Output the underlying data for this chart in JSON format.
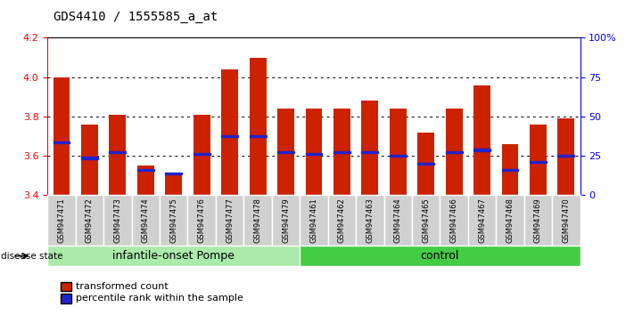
{
  "title": "GDS4410 / 1555585_a_at",
  "samples": [
    "GSM947471",
    "GSM947472",
    "GSM947473",
    "GSM947474",
    "GSM947475",
    "GSM947476",
    "GSM947477",
    "GSM947478",
    "GSM947479",
    "GSM947461",
    "GSM947462",
    "GSM947463",
    "GSM947464",
    "GSM947465",
    "GSM947466",
    "GSM947467",
    "GSM947468",
    "GSM947469",
    "GSM947470"
  ],
  "bar_values": [
    4.0,
    3.76,
    3.81,
    3.55,
    3.5,
    3.81,
    4.04,
    4.1,
    3.84,
    3.84,
    3.84,
    3.88,
    3.84,
    3.72,
    3.84,
    3.96,
    3.66,
    3.76,
    3.79
  ],
  "percentile_values": [
    3.67,
    3.59,
    3.62,
    3.53,
    3.51,
    3.61,
    3.7,
    3.7,
    3.62,
    3.61,
    3.62,
    3.62,
    3.6,
    3.56,
    3.62,
    3.63,
    3.53,
    3.57,
    3.6
  ],
  "groups": [
    "infantile-onset Pompe",
    "infantile-onset Pompe",
    "infantile-onset Pompe",
    "infantile-onset Pompe",
    "infantile-onset Pompe",
    "infantile-onset Pompe",
    "infantile-onset Pompe",
    "infantile-onset Pompe",
    "infantile-onset Pompe",
    "control",
    "control",
    "control",
    "control",
    "control",
    "control",
    "control",
    "control",
    "control",
    "control"
  ],
  "bar_color": "#CC2200",
  "marker_color": "#2222CC",
  "ylim_min": 3.4,
  "ylim_max": 4.2,
  "yticks_left": [
    3.4,
    3.6,
    3.8,
    4.0,
    4.2
  ],
  "yticks_right": [
    0,
    25,
    50,
    75,
    100
  ],
  "ytick_labels_right": [
    "0",
    "25",
    "50",
    "75",
    "100%"
  ],
  "gridlines": [
    3.6,
    3.8,
    4.0
  ],
  "group_color_pompe": "#AAEAAA",
  "group_color_control": "#44CC44",
  "disease_state_label": "disease state",
  "legend_label_red": "transformed count",
  "legend_label_blue": "percentile rank within the sample",
  "tick_bg_color": "#D0D0D0"
}
